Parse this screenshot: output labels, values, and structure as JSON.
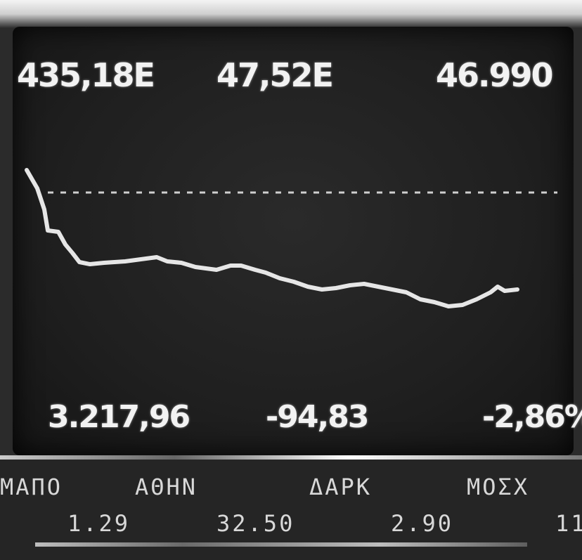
{
  "display": {
    "top_values": [
      "435,18E",
      "47,52E",
      "46.990"
    ],
    "bottom_values": [
      "3.217,96",
      "-94,83",
      "-2,86%"
    ]
  },
  "ticker": {
    "names": [
      "ΜΑΠΟ",
      "ΑΘΗΝ",
      "ΔΑΡΚ",
      "ΜΟΣΧ"
    ],
    "prices": [
      "1.29",
      "32.50",
      "2.90",
      "11"
    ]
  },
  "colors": {
    "screen_bg": "#1f1f1f",
    "trace": "#e6e6e6",
    "reference_line": "#cfcfcf"
  }
}
